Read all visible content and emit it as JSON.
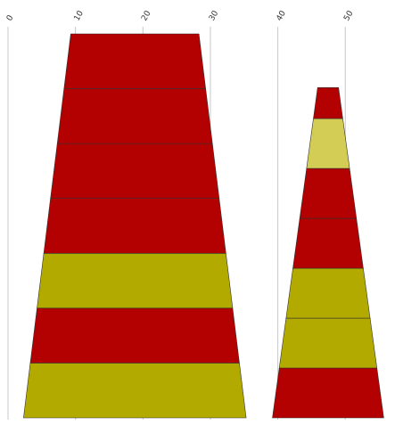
{
  "chart_data": {
    "type": "bar",
    "subtype": "stacked-funnel",
    "title": "",
    "xlabel": "",
    "ylabel": "",
    "x_axis": {
      "position": "top",
      "range": [
        0,
        57.5
      ],
      "ticks": [
        0,
        10,
        20,
        30,
        40,
        50
      ],
      "tick_labels": [
        "0",
        "10",
        "20",
        "30",
        "40",
        "50"
      ],
      "label_rotation": "diagonal",
      "grid": true
    },
    "colors": {
      "red": "#b30000",
      "olive": "#b3aa00",
      "light_olive": "#d4cd55"
    },
    "funnels": [
      {
        "start": 2.3,
        "top_width": 19,
        "bottom_width": 33,
        "segments": [
          {
            "value": 1,
            "color": "olive"
          },
          {
            "value": 1,
            "color": "red"
          },
          {
            "value": 1,
            "color": "olive"
          },
          {
            "value": 1,
            "color": "red"
          },
          {
            "value": 1,
            "color": "red"
          },
          {
            "value": 1,
            "color": "red"
          },
          {
            "value": 1,
            "color": "red"
          }
        ]
      },
      {
        "start": 39.2,
        "top_width": 3.1,
        "bottom_width": 16.5,
        "top_fraction": 0.14,
        "segments": [
          {
            "value": 1,
            "color": "red"
          },
          {
            "value": 1,
            "color": "olive"
          },
          {
            "value": 1,
            "color": "olive"
          },
          {
            "value": 1,
            "color": "red"
          },
          {
            "value": 1,
            "color": "red"
          },
          {
            "value": 1,
            "color": "light_olive"
          },
          {
            "value": 0.62,
            "color": "red"
          }
        ]
      }
    ]
  }
}
